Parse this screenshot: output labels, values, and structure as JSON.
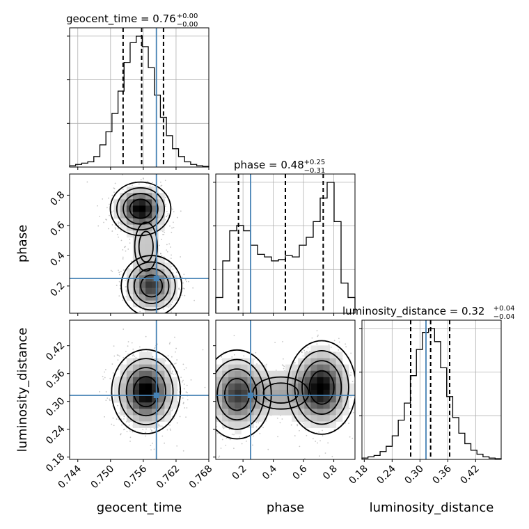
{
  "chart_data": {
    "type": "corner",
    "parameters": [
      "geocent_time",
      "phase",
      "luminosity_distance"
    ],
    "truths": [
      0.7584,
      0.25,
      0.313
    ],
    "truth_color": "#4682b4",
    "ranges": [
      [
        0.7425,
        0.768
      ],
      [
        0.02,
        0.94
      ],
      [
        0.175,
        0.475
      ]
    ],
    "ticks": {
      "geocent_time": {
        "values": [
          0.744,
          0.75,
          0.756,
          0.762,
          0.768
        ],
        "labels": [
          "0.744",
          "0.750",
          "0.756",
          "0.762",
          "0.768"
        ]
      },
      "phase": {
        "values": [
          0.2,
          0.4,
          0.6,
          0.8
        ],
        "labels": [
          "0.2",
          "0.4",
          "0.6",
          "0.8"
        ]
      },
      "luminosity_distance": {
        "values": [
          0.18,
          0.24,
          0.3,
          0.36,
          0.42
        ],
        "labels": [
          "0.18",
          "0.24",
          "0.30",
          "0.36",
          "0.42"
        ]
      }
    },
    "titles": [
      {
        "param": "geocent_time",
        "text": "geocent_time = 0.76",
        "plus": "+0.00",
        "minus": "−0.00"
      },
      {
        "param": "phase",
        "text": "phase = 0.48",
        "plus": "+0.25",
        "minus": "−0.31"
      },
      {
        "param": "luminosity_distance",
        "text": "luminosity_distance = 0.32",
        "plus": "+0.04",
        "minus": "−0.04"
      }
    ],
    "histograms": {
      "geocent_time": {
        "edges": [
          0.7425,
          0.768
        ],
        "counts": [
          1,
          2,
          3,
          4,
          8,
          17,
          27,
          41,
          58,
          80,
          95,
          100,
          92,
          76,
          55,
          38,
          24,
          14,
          8,
          4,
          2,
          1,
          0.5
        ],
        "quantiles": [
          0.7523,
          0.7557,
          0.7597
        ]
      },
      "phase": {
        "edges": [
          0.02,
          0.94
        ],
        "counts": [
          12,
          40,
          63,
          67,
          63,
          52,
          45,
          43,
          40,
          41,
          44,
          43,
          52,
          58,
          70,
          88,
          100,
          70,
          23,
          12
        ],
        "quantiles": [
          0.17,
          0.48,
          0.73
        ]
      },
      "luminosity_distance": {
        "edges": [
          0.175,
          0.475
        ],
        "counts": [
          1,
          2,
          3,
          6,
          10,
          18,
          30,
          43,
          64,
          84,
          97,
          100,
          90,
          70,
          48,
          32,
          20,
          12,
          7,
          4,
          2,
          1,
          0.5
        ],
        "quantiles": [
          0.28,
          0.323,
          0.364
        ]
      }
    },
    "pairs": [
      {
        "x": "geocent_time",
        "y": "phase",
        "modes": [
          {
            "cx": 0.7555,
            "cy": 0.71,
            "sx": 0.0022,
            "sy": 0.07,
            "w": 1.0
          },
          {
            "cx": 0.7575,
            "cy": 0.2,
            "sx": 0.0022,
            "sy": 0.08,
            "w": 0.75
          },
          {
            "cx": 0.7565,
            "cy": 0.46,
            "sx": 0.0018,
            "sy": 0.14,
            "w": 0.22
          }
        ]
      },
      {
        "x": "geocent_time",
        "y": "luminosity_distance",
        "modes": [
          {
            "cx": 0.7565,
            "cy": 0.321,
            "sx": 0.0025,
            "sy": 0.036,
            "w": 1.0
          }
        ]
      },
      {
        "x": "phase",
        "y": "luminosity_distance",
        "modes": [
          {
            "cx": 0.72,
            "cy": 0.33,
            "sx": 0.09,
            "sy": 0.04,
            "w": 1.0
          },
          {
            "cx": 0.16,
            "cy": 0.315,
            "sx": 0.09,
            "sy": 0.038,
            "w": 0.75
          },
          {
            "cx": 0.45,
            "cy": 0.318,
            "sx": 0.16,
            "sy": 0.03,
            "w": 0.35
          }
        ]
      }
    ],
    "axis_labels": {
      "x": [
        "geocent_time",
        "phase",
        "luminosity_distance"
      ],
      "y": [
        "phase",
        "luminosity_distance"
      ]
    },
    "grid": true
  }
}
